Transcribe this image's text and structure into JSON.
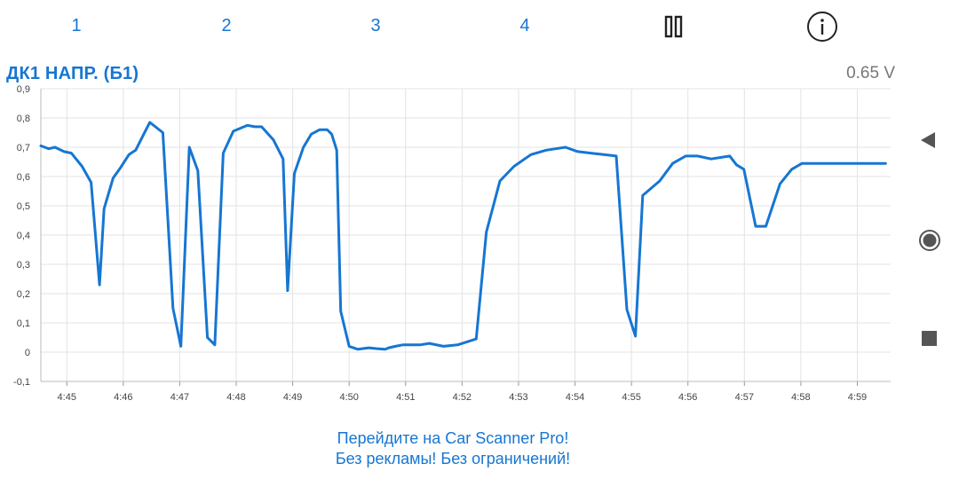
{
  "tabs": [
    "1",
    "2",
    "3",
    "4"
  ],
  "icons": {
    "pause": "pause-icon",
    "info": "info-icon",
    "back": "triangle-left-icon",
    "record": "record-icon",
    "stop": "stop-icon"
  },
  "colors": {
    "accent": "#1676d2",
    "grid": "#e3e3e3",
    "value_text": "#777777"
  },
  "parameter": {
    "name": "ДК1 НАПР. (Б1)",
    "value": "0.65 V"
  },
  "chart_data": {
    "type": "line",
    "title": "",
    "xlabel": "",
    "ylabel": "",
    "ylim": [
      -0.1,
      0.9
    ],
    "yticks": [
      -0.1,
      0,
      0.1,
      0.2,
      0.3,
      0.4,
      0.5,
      0.6,
      0.7,
      0.8,
      0.9
    ],
    "ytick_labels": [
      "-0,1",
      "0",
      "0,1",
      "0,2",
      "0,3",
      "0,4",
      "0,5",
      "0,6",
      "0,7",
      "0,8",
      "0,9"
    ],
    "xlim": [
      4.29,
      19.34
    ],
    "xticks": [
      4.75,
      5.75,
      6.75,
      7.75,
      8.75,
      9.75,
      10.75,
      11.75,
      12.75,
      13.75,
      14.75,
      15.75,
      16.75,
      17.75,
      18.75
    ],
    "xtick_labels": [
      "4:45",
      "4:46",
      "4:47",
      "4:48",
      "4:49",
      "4:50",
      "4:51",
      "4:52",
      "4:53",
      "4:54",
      "4:55",
      "4:56",
      "4:57",
      "4:58",
      "4:59"
    ],
    "grid": true,
    "series": [
      {
        "x": [
          4.29,
          4.43,
          4.54,
          4.7,
          4.83,
          5.02,
          5.18,
          5.33,
          5.41,
          5.57,
          5.7,
          5.85,
          5.97,
          6.1,
          6.22,
          6.45,
          6.63,
          6.77,
          6.92,
          7.07,
          7.24,
          7.37,
          7.52,
          7.7,
          7.95,
          8.08,
          8.2,
          8.41,
          8.58,
          8.66,
          8.78,
          8.94,
          9.08,
          9.23,
          9.36,
          9.44,
          9.53,
          9.6,
          9.75,
          9.9,
          10.1,
          10.23,
          10.39,
          10.45,
          10.57,
          10.7,
          10.85,
          11.0,
          11.17,
          11.42,
          11.67,
          12.0,
          12.18,
          12.42,
          12.67,
          12.97,
          13.24,
          13.58,
          13.8,
          14.03,
          14.26,
          14.48,
          14.67,
          14.82,
          14.95,
          15.25,
          15.48,
          15.71,
          15.92,
          16.16,
          16.49,
          16.61,
          16.74,
          16.87,
          16.95,
          17.13,
          17.38,
          17.59,
          17.77,
          17.92,
          18.08,
          18.18,
          18.33,
          18.5,
          18.6,
          18.81,
          18.97,
          19.1,
          19.25
        ],
        "values": [
          0.705,
          0.695,
          0.7,
          0.685,
          0.68,
          0.635,
          0.58,
          0.23,
          0.49,
          0.595,
          0.63,
          0.675,
          0.69,
          0.74,
          0.785,
          0.75,
          0.15,
          0.02,
          0.7,
          0.62,
          0.05,
          0.025,
          0.68,
          0.755,
          0.775,
          0.77,
          0.77,
          0.725,
          0.66,
          0.21,
          0.61,
          0.7,
          0.745,
          0.76,
          0.76,
          0.745,
          0.69,
          0.14,
          0.02,
          0.01,
          0.015,
          0.012,
          0.01,
          0.015,
          0.02,
          0.025,
          0.025,
          0.025,
          0.03,
          0.02,
          0.025,
          0.045,
          0.41,
          0.585,
          0.635,
          0.675,
          0.69,
          0.7,
          0.685,
          0.68,
          0.675,
          0.67,
          0.145,
          0.055,
          0.535,
          0.585,
          0.645,
          0.67,
          0.67,
          0.66,
          0.67,
          0.64,
          0.625,
          0.505,
          0.43,
          0.43,
          0.575,
          0.625,
          0.645,
          0.645,
          0.645,
          0.645,
          0.645,
          0.645,
          0.645,
          0.645,
          0.645,
          0.645,
          0.645
        ]
      }
    ]
  },
  "promo": {
    "line1": "Перейдите на Car Scanner Pro!",
    "line2": "Без рекламы! Без ограничений!"
  }
}
